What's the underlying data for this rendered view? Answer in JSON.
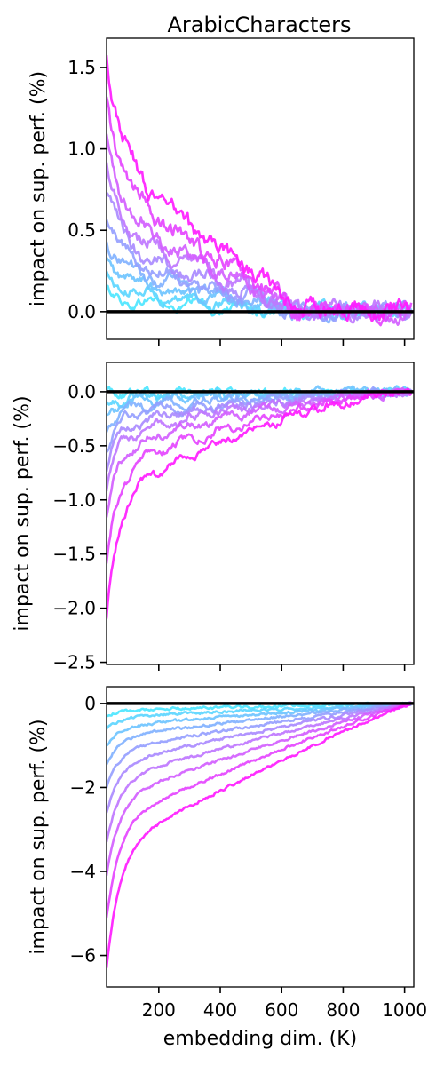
{
  "figure": {
    "title": "ArabicCharacters"
  },
  "chart_data": [
    {
      "type": "line",
      "title": "ArabicCharacters",
      "xlabel": "",
      "ylabel": "impact on sup. perf. (%)",
      "xlim": [
        30,
        1030
      ],
      "ylim": [
        -0.17,
        1.68
      ],
      "yticks": [
        0.0,
        0.5,
        1.0,
        1.5
      ],
      "ytick_labels": [
        "0.0",
        "0.5",
        "1.0",
        "1.5"
      ],
      "xticks": [
        200,
        400,
        600,
        800,
        1000
      ],
      "xtick_labels": [
        "",
        "",
        "",
        "",
        ""
      ],
      "reference_line": 0,
      "n_series": 10,
      "series_start_values": [
        0.11,
        0.22,
        0.33,
        0.45,
        0.58,
        0.72,
        0.88,
        1.05,
        1.3,
        1.58
      ],
      "series_colors": [
        "#4de6ff",
        "#5dd6ff",
        "#6fc4ff",
        "#82b2ff",
        "#969fff",
        "#aa8bff",
        "#bf77ff",
        "#d35fff",
        "#e545ff",
        "#ff1cff"
      ],
      "x_range": [
        30,
        1024
      ],
      "zero_crossing_x": 650,
      "grid": false
    },
    {
      "type": "line",
      "title": "",
      "xlabel": "",
      "ylabel": "impact on sup. perf. (%)",
      "xlim": [
        30,
        1030
      ],
      "ylim": [
        -2.52,
        0.27
      ],
      "yticks": [
        -2.5,
        -2.0,
        -1.5,
        -1.0,
        -0.5,
        0.0
      ],
      "ytick_labels": [
        "−2.5",
        "−2.0",
        "−1.5",
        "−1.0",
        "−0.5",
        "0.0"
      ],
      "xticks": [
        200,
        400,
        600,
        800,
        1000
      ],
      "xtick_labels": [
        "",
        "",
        "",
        "",
        ""
      ],
      "reference_line": 0,
      "n_series": 10,
      "series_start_values": [
        0.0,
        -0.1,
        -0.2,
        -0.33,
        -0.5,
        -0.68,
        -0.88,
        -1.15,
        -1.6,
        -2.12
      ],
      "series_colors": [
        "#4de6ff",
        "#5dd6ff",
        "#6fc4ff",
        "#82b2ff",
        "#969fff",
        "#aa8bff",
        "#bf77ff",
        "#d35fff",
        "#e545ff",
        "#ff1cff"
      ],
      "x_range": [
        30,
        1024
      ],
      "grid": false
    },
    {
      "type": "line",
      "title": "",
      "xlabel": "embedding dim. (K)",
      "ylabel": "impact on sup. perf. (%)",
      "xlim": [
        30,
        1030
      ],
      "ylim": [
        -6.75,
        0.4
      ],
      "yticks": [
        -6,
        -4,
        -2,
        0
      ],
      "ytick_labels": [
        "−6",
        "−4",
        "−2",
        "0"
      ],
      "xticks": [
        200,
        400,
        600,
        800,
        1000
      ],
      "xtick_labels": [
        "200",
        "400",
        "600",
        "800",
        "1000"
      ],
      "reference_line": 0,
      "n_series": 10,
      "series_start_values": [
        -0.3,
        -0.6,
        -1.0,
        -1.45,
        -2.0,
        -2.6,
        -3.3,
        -4.1,
        -5.1,
        -6.3
      ],
      "series_colors": [
        "#4de6ff",
        "#5dd6ff",
        "#6fc4ff",
        "#82b2ff",
        "#969fff",
        "#aa8bff",
        "#bf77ff",
        "#d35fff",
        "#e545ff",
        "#ff1cff"
      ],
      "x_range": [
        30,
        1024
      ],
      "grid": false
    }
  ]
}
